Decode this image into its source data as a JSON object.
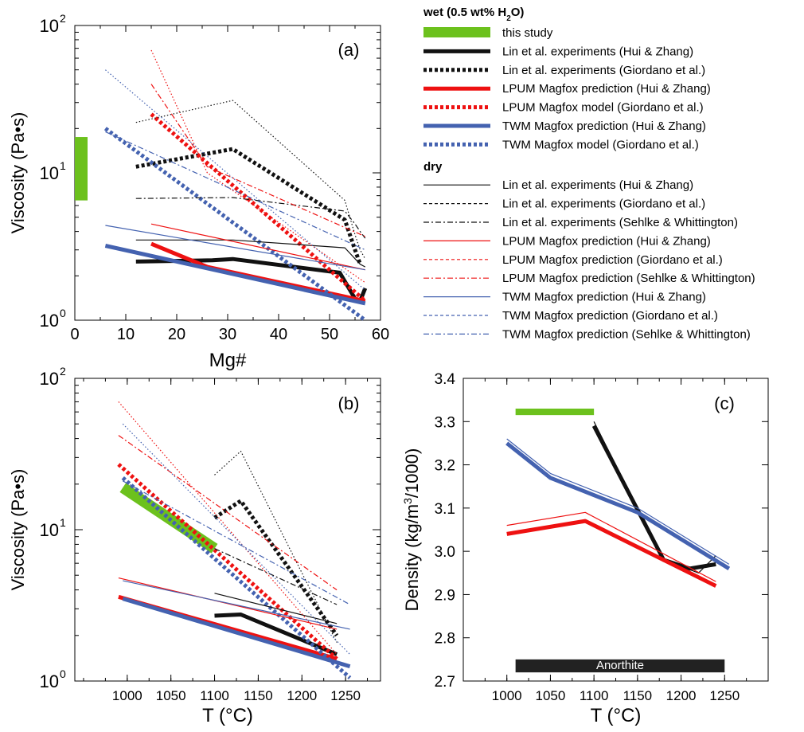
{
  "colors": {
    "green": "#6cc11d",
    "black": "#111111",
    "red": "#ee1111",
    "blue": "#4462b0",
    "bar": "#222222"
  },
  "legend": {
    "wet_header": "wet (0.5 wt% H",
    "wet_header_sub": "2",
    "wet_header_end": "O)",
    "dry_header": "dry",
    "wet_items": [
      {
        "label": "this study",
        "color": "green",
        "style": "bar"
      },
      {
        "label": "Lin et al. experiments (Hui & Zhang)",
        "color": "black",
        "style": "thick"
      },
      {
        "label": "Lin et al. experiments (Giordano et al.)",
        "color": "black",
        "style": "thickdot"
      },
      {
        "label": "LPUM Magfox prediction (Hui & Zhang)",
        "color": "red",
        "style": "thick"
      },
      {
        "label": "LPUM Magfox model (Giordano et al.)",
        "color": "red",
        "style": "thickdot"
      },
      {
        "label": "TWM Magfox prediction (Hui & Zhang)",
        "color": "blue",
        "style": "thick"
      },
      {
        "label": "TWM Magfox model (Giordano et al.)",
        "color": "blue",
        "style": "thickdot"
      }
    ],
    "dry_items": [
      {
        "label": "Lin et al. experiments (Hui & Zhang)",
        "color": "black",
        "style": "thin"
      },
      {
        "label": "Lin et al. experiments (Giordano et al.)",
        "color": "black",
        "style": "dash"
      },
      {
        "label": "Lin et al. experiments (Sehlke & Whittington)",
        "color": "black",
        "style": "dashdot"
      },
      {
        "label": "LPUM Magfox prediction (Hui & Zhang)",
        "color": "red",
        "style": "thin"
      },
      {
        "label": "LPUM Magfox prediction (Giordano et al.)",
        "color": "red",
        "style": "dash"
      },
      {
        "label": "LPUM Magfox prediction (Sehlke & Whittington)",
        "color": "red",
        "style": "dashdot"
      },
      {
        "label": "TWM Magfox prediction (Hui & Zhang)",
        "color": "blue",
        "style": "thin"
      },
      {
        "label": "TWM Magfox prediction (Giordano et al.)",
        "color": "blue",
        "style": "dash"
      },
      {
        "label": "TWM Magfox prediction (Sehlke & Whittington)",
        "color": "blue",
        "style": "dashdot"
      }
    ]
  },
  "chart_data": [
    {
      "panel_label": "(a)",
      "type": "line",
      "xlabel": "Mg#",
      "ylabel": "Viscosity (Pa•s)",
      "xlim": [
        0,
        60
      ],
      "xticks": [
        "0",
        "10",
        "20",
        "30",
        "40",
        "50",
        "60"
      ],
      "ylim_log10": [
        0,
        2
      ],
      "yscale": "log",
      "yticks": [
        {
          "base": "10",
          "exp": "0"
        },
        {
          "base": "10",
          "exp": "1"
        },
        {
          "base": "10",
          "exp": "2"
        }
      ],
      "bands": [
        {
          "series": "this study",
          "x": [
            0,
            2.5
          ],
          "y": [
            6.5,
            17.5
          ],
          "color": "green"
        }
      ],
      "series": [
        {
          "series": "Lin et al. experiments (Hui & Zhang) wet",
          "color": "black",
          "style": "thick",
          "x": [
            12,
            27,
            31,
            52,
            55,
            56,
            57
          ],
          "y": [
            2.5,
            2.55,
            2.6,
            2.1,
            1.4,
            1.35,
            1.65
          ]
        },
        {
          "series": "Lin et al. experiments (Giordano et al.) wet",
          "color": "black",
          "style": "thickdot",
          "x": [
            12,
            31,
            53,
            55,
            56
          ],
          "y": [
            11,
            14.5,
            4.8,
            3.0,
            2.4
          ]
        },
        {
          "series": "LPUM Magfox prediction (Hui & Zhang) wet",
          "color": "red",
          "style": "thick",
          "x": [
            15,
            26,
            57
          ],
          "y": [
            3.3,
            2.3,
            1.35
          ]
        },
        {
          "series": "LPUM Magfox model (Giordano et al.) wet",
          "color": "red",
          "style": "thickdot",
          "x": [
            15,
            57
          ],
          "y": [
            25,
            1.35
          ]
        },
        {
          "series": "TWM Magfox prediction (Hui & Zhang) wet",
          "color": "blue",
          "style": "thick",
          "x": [
            6,
            57
          ],
          "y": [
            3.2,
            1.3
          ]
        },
        {
          "series": "TWM Magfox model (Giordano et al.) wet",
          "color": "blue",
          "style": "thickdot",
          "x": [
            6,
            57
          ],
          "y": [
            20,
            1.0
          ]
        },
        {
          "series": "Lin et al. experiments (Hui & Zhang) dry",
          "color": "black",
          "style": "thin",
          "x": [
            12,
            31,
            53,
            56,
            57
          ],
          "y": [
            3.5,
            3.5,
            3.1,
            2.4,
            2.3
          ]
        },
        {
          "series": "Lin et al. experiments (Giordano et al.) dry",
          "color": "black",
          "style": "dotfine",
          "x": [
            12,
            31,
            53,
            55,
            56,
            57
          ],
          "y": [
            22,
            31,
            6.5,
            3.8,
            3.0,
            2.6
          ]
        },
        {
          "series": "Lin et al. experiments (Sehlke & Whittington) dry",
          "color": "black",
          "style": "dashdot",
          "x": [
            12,
            31,
            53,
            55,
            56,
            57
          ],
          "y": [
            6.7,
            6.8,
            5.5,
            4.5,
            4.0,
            3.6
          ]
        },
        {
          "series": "LPUM Magfox prediction (Hui & Zhang) dry",
          "color": "red",
          "style": "thin",
          "x": [
            15,
            57
          ],
          "y": [
            4.5,
            2.2
          ]
        },
        {
          "series": "LPUM Magfox prediction (Giordano et al.) dry",
          "color": "red",
          "style": "dotfine",
          "x": [
            15,
            26,
            57
          ],
          "y": [
            68,
            10,
            1.8
          ]
        },
        {
          "series": "LPUM Magfox prediction (Sehlke & Whittington) dry",
          "color": "red",
          "style": "dashdot",
          "x": [
            15,
            26,
            57
          ],
          "y": [
            40,
            11,
            3.7
          ]
        },
        {
          "series": "TWM Magfox prediction (Hui & Zhang) dry",
          "color": "blue",
          "style": "thin",
          "x": [
            6,
            57
          ],
          "y": [
            4.4,
            2.2
          ]
        },
        {
          "series": "TWM Magfox prediction (Giordano et al.) dry",
          "color": "blue",
          "style": "dotfine",
          "x": [
            6,
            57
          ],
          "y": [
            50,
            1.6
          ]
        },
        {
          "series": "TWM Magfox prediction (Sehlke & Whittington) dry",
          "color": "blue",
          "style": "dashdot",
          "x": [
            6,
            57
          ],
          "y": [
            19,
            3.0
          ]
        }
      ]
    },
    {
      "panel_label": "(b)",
      "type": "line",
      "xlabel": "T (°C)",
      "ylabel": "Viscosity (Pa•s)",
      "xlim": [
        940,
        1290
      ],
      "xticks": [
        "1000",
        "1050",
        "1100",
        "1150",
        "1200",
        "1250"
      ],
      "ylim_log10": [
        0,
        2
      ],
      "yscale": "log",
      "yticks": [
        {
          "base": "10",
          "exp": "0"
        },
        {
          "base": "10",
          "exp": "1"
        },
        {
          "base": "10",
          "exp": "2"
        }
      ],
      "bands": [
        {
          "series": "this study",
          "x": [
            995,
            1100
          ],
          "y": [
            19,
            7.5
          ],
          "color": "green",
          "kind": "diagonal"
        }
      ],
      "series": [
        {
          "series": "Lin et al. experiments (Hui & Zhang) wet",
          "color": "black",
          "style": "thick",
          "x": [
            1100,
            1130,
            1240
          ],
          "y": [
            2.7,
            2.75,
            1.5
          ]
        },
        {
          "series": "Lin et al. experiments (Giordano et al.) wet",
          "color": "black",
          "style": "thickdot",
          "x": [
            1100,
            1130,
            1240
          ],
          "y": [
            12,
            15.5,
            2.0
          ]
        },
        {
          "series": "LPUM Magfox prediction (Hui & Zhang) wet",
          "color": "red",
          "style": "thick",
          "x": [
            990,
            1240
          ],
          "y": [
            3.6,
            1.4
          ]
        },
        {
          "series": "LPUM Magfox model (Giordano et al.) wet",
          "color": "red",
          "style": "thickdot",
          "x": [
            990,
            1240
          ],
          "y": [
            27,
            1.4
          ]
        },
        {
          "series": "TWM Magfox prediction (Hui & Zhang) wet",
          "color": "blue",
          "style": "thick",
          "x": [
            995,
            1255
          ],
          "y": [
            3.5,
            1.25
          ]
        },
        {
          "series": "TWM Magfox model (Giordano et al.) wet",
          "color": "blue",
          "style": "thickdot",
          "x": [
            995,
            1255
          ],
          "y": [
            22,
            1.05
          ]
        },
        {
          "series": "Lin et al. experiments (Hui & Zhang) dry",
          "color": "black",
          "style": "thin",
          "x": [
            1100,
            1240
          ],
          "y": [
            3.8,
            2.4
          ]
        },
        {
          "series": "Lin et al. experiments (Giordano et al.) dry",
          "color": "black",
          "style": "dotfine",
          "x": [
            1100,
            1130,
            1240
          ],
          "y": [
            23,
            33,
            1.8
          ]
        },
        {
          "series": "Lin et al. experiments (Sehlke & Whittington) dry",
          "color": "black",
          "style": "dashdot",
          "x": [
            1100,
            1240
          ],
          "y": [
            7.5,
            3.2
          ]
        },
        {
          "series": "LPUM Magfox prediction (Hui & Zhang) dry",
          "color": "red",
          "style": "thin",
          "x": [
            990,
            1240
          ],
          "y": [
            4.8,
            2.2
          ]
        },
        {
          "series": "LPUM Magfox prediction (Giordano et al.) dry",
          "color": "red",
          "style": "dotfine",
          "x": [
            990,
            1240
          ],
          "y": [
            70,
            1.5
          ]
        },
        {
          "series": "LPUM Magfox prediction (Sehlke & Whittington) dry",
          "color": "red",
          "style": "dashdot",
          "x": [
            990,
            1240
          ],
          "y": [
            42,
            4.0
          ]
        },
        {
          "series": "TWM Magfox prediction (Hui & Zhang) dry",
          "color": "blue",
          "style": "thin",
          "x": [
            995,
            1255
          ],
          "y": [
            4.6,
            2.2
          ]
        },
        {
          "series": "TWM Magfox prediction (Giordano et al.) dry",
          "color": "blue",
          "style": "dotfine",
          "x": [
            995,
            1255
          ],
          "y": [
            50,
            1.5
          ]
        },
        {
          "series": "TWM Magfox prediction (Sehlke & Whittington) dry",
          "color": "blue",
          "style": "dashdot",
          "x": [
            995,
            1255
          ],
          "y": [
            21,
            3.2
          ]
        }
      ]
    },
    {
      "panel_label": "(c)",
      "type": "line",
      "xlabel": "T (°C)",
      "ylabel": "Density (kg/m",
      "ylabel_sup": "3",
      "ylabel_end": "/1000)",
      "xlim": [
        950,
        1300
      ],
      "xticks": [
        "1000",
        "1050",
        "1100",
        "1150",
        "1200",
        "1250"
      ],
      "ylim": [
        2.7,
        3.4
      ],
      "yscale": "linear",
      "yticks": [
        "2.7",
        "2.8",
        "2.9",
        "3.0",
        "3.1",
        "3.2",
        "3.3",
        "3.4"
      ],
      "bands": [
        {
          "series": "this study",
          "x": [
            1010,
            1100
          ],
          "y": [
            3.315,
            3.33
          ],
          "color": "green"
        }
      ],
      "anorthite_band": {
        "label": "Anorthite",
        "x": [
          1010,
          1250
        ],
        "y": [
          2.72,
          2.75
        ]
      },
      "series": [
        {
          "series": "Lin et al. experiments (Hui & Zhang) wet",
          "color": "black",
          "style": "thick",
          "x": [
            1100,
            1180,
            1210,
            1240
          ],
          "y": [
            3.29,
            2.98,
            2.96,
            2.97
          ]
        },
        {
          "series": "Lin et al. experiments (Hui & Zhang) dry",
          "color": "black",
          "style": "thin",
          "x": [
            1100,
            1180,
            1220,
            1240
          ],
          "y": [
            3.3,
            2.98,
            2.95,
            2.99
          ]
        },
        {
          "series": "LPUM Magfox prediction (Hui & Zhang) wet",
          "color": "red",
          "style": "thick",
          "x": [
            1000,
            1090,
            1240
          ],
          "y": [
            3.04,
            3.07,
            2.92
          ]
        },
        {
          "series": "LPUM Magfox prediction (Hui & Zhang) dry",
          "color": "red",
          "style": "thin",
          "x": [
            1000,
            1090,
            1240
          ],
          "y": [
            3.06,
            3.09,
            2.93
          ]
        },
        {
          "series": "TWM Magfox prediction (Hui & Zhang) wet",
          "color": "blue",
          "style": "thick",
          "x": [
            1000,
            1050,
            1150,
            1255
          ],
          "y": [
            3.25,
            3.17,
            3.09,
            2.96
          ]
        },
        {
          "series": "TWM Magfox prediction (Hui & Zhang) dry",
          "color": "blue",
          "style": "thin",
          "x": [
            1000,
            1050,
            1150,
            1255
          ],
          "y": [
            3.26,
            3.18,
            3.1,
            2.97
          ]
        }
      ]
    }
  ]
}
